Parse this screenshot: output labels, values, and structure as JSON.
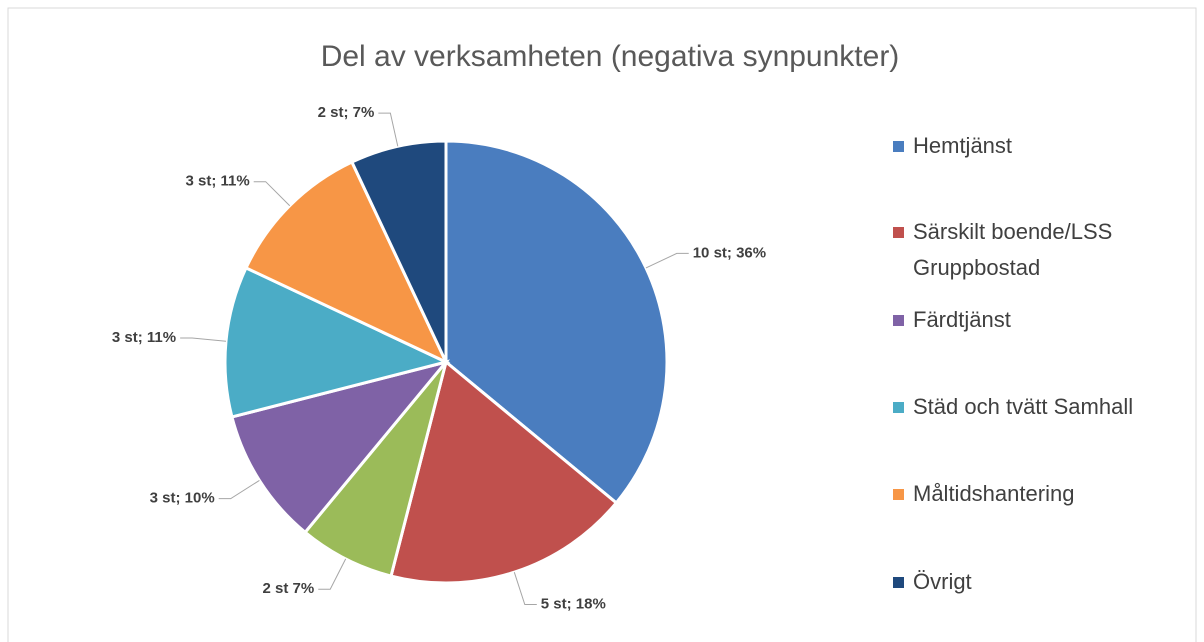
{
  "chart_data": {
    "type": "pie",
    "title": "Del av verksamheten (negativa synpunkter)",
    "categories": [
      "Hemtjänst",
      "Särskilt boende/LSS Gruppbostad",
      null,
      "Färdtjänst",
      "Städ och tvätt Samhall",
      "Måltidshantering",
      "Övrigt"
    ],
    "values": [
      36,
      18,
      7,
      10,
      11,
      11,
      7
    ],
    "value_labels": [
      "10 st; 36%",
      "5 st; 18%",
      "2 st 7%",
      "3 st; 10%",
      "3 st; 11%",
      "3 st; 11%",
      "2 st; 7%"
    ],
    "colors": [
      "#4a7dbf",
      "#c0504d",
      "#9bbb59",
      "#7f62a6",
      "#4bacc6",
      "#f79646",
      "#1f497d"
    ]
  }
}
